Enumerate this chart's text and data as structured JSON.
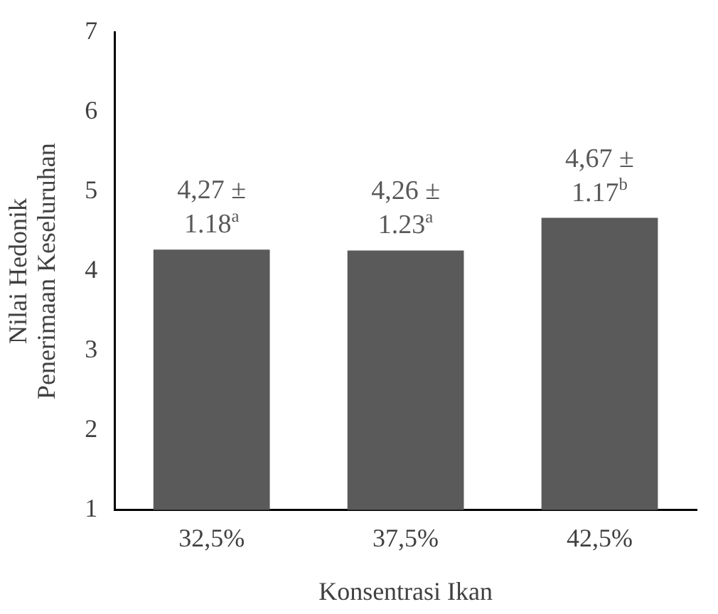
{
  "chart_data": {
    "type": "bar",
    "xlabel": "Konsentrasi Ikan",
    "ylabel": "Nilai Hedonik Penerimaan Keseluruhan",
    "categories": [
      "32,5%",
      "37,5%",
      "42,5%"
    ],
    "values": [
      4.27,
      4.26,
      4.67
    ],
    "value_labels": [
      "4,27 ± 1.18$^{a}$",
      "4,26 ± 1.23$^{a}$",
      "4,67 ± 1.17$^{b}$"
    ],
    "color": "#5a5a5a",
    "ylim": [
      1,
      7
    ],
    "yticks": [
      1,
      2,
      3,
      4,
      5,
      6,
      7
    ],
    "grid": false,
    "legend": false
  }
}
